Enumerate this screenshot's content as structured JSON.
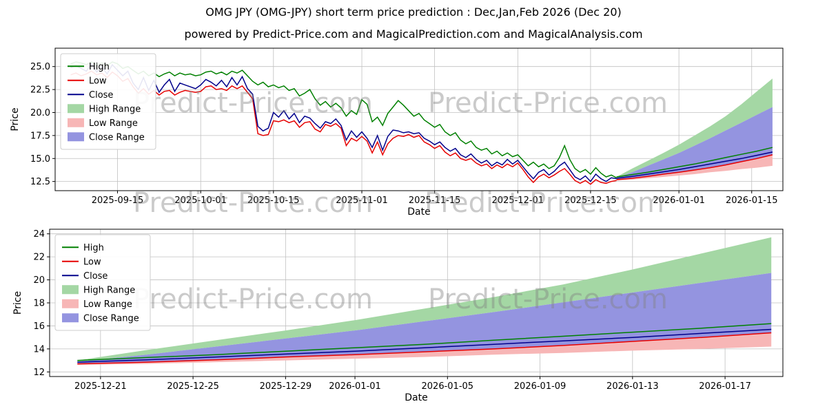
{
  "title": "OMG JPY (OMG-JPY) short term price prediction : Dec,Jan,Feb 2026 (Dec 20)",
  "subtitle": "powered by Predict-Price.com and MagicalPrediction.com and MagicalAnalysis.com",
  "watermark": "Predict-Price.com",
  "legend": [
    "High",
    "Low",
    "Close",
    "High Range",
    "Low Range",
    "Close Range"
  ],
  "colors": {
    "high": "#008000",
    "low": "#e60000",
    "close": "#00008b",
    "high_range": "#a4d7a4",
    "low_range": "#f7b6b6",
    "close_range": "#9494e0",
    "grid": "#c0c0c0",
    "watermark": "#808080"
  },
  "chart_data": {
    "type": "line",
    "history": {
      "start_day": 5,
      "day0_date": "2025-09-01",
      "high": [
        25.3,
        25.5,
        25.4,
        25.2,
        25.5,
        25.2,
        25.4,
        25.1,
        25.5,
        25.3,
        24.8,
        25.0,
        24.6,
        24.2,
        24.5,
        24.0,
        24.3,
        23.9,
        24.2,
        24.4,
        24.0,
        24.3,
        24.1,
        24.2,
        24.0,
        24.1,
        24.4,
        24.5,
        24.2,
        24.4,
        24.1,
        24.5,
        24.3,
        24.6,
        24.0,
        23.4,
        23.0,
        23.3,
        22.8,
        23.0,
        22.7,
        22.9,
        22.4,
        22.6,
        21.8,
        22.1,
        22.5,
        21.5,
        20.8,
        21.2,
        20.6,
        21.0,
        20.5,
        19.6,
        20.2,
        19.8,
        21.4,
        20.9,
        19.0,
        19.5,
        18.6,
        19.9,
        20.6,
        21.3,
        20.8,
        20.2,
        19.6,
        19.9,
        19.2,
        18.8,
        18.4,
        18.7,
        17.9,
        17.5,
        17.8,
        17.0,
        16.6,
        16.9,
        16.2,
        15.9,
        16.1,
        15.5,
        15.8,
        15.3,
        15.6,
        15.2,
        15.4,
        14.8,
        14.2,
        14.6,
        14.1,
        14.4,
        13.9,
        14.2,
        15.1,
        16.4,
        14.9,
        13.9,
        13.5,
        13.8,
        13.3,
        14.0,
        13.4,
        13.0,
        13.2,
        12.9
      ],
      "low": [
        24.1,
        24.3,
        24.0,
        24.2,
        24.5,
        24.1,
        24.3,
        23.8,
        24.4,
        24.0,
        23.4,
        23.7,
        22.8,
        22.1,
        22.6,
        22.0,
        22.4,
        21.9,
        22.3,
        22.4,
        21.9,
        22.2,
        22.4,
        22.3,
        22.2,
        22.3,
        22.8,
        22.9,
        22.5,
        22.6,
        22.4,
        22.9,
        22.6,
        22.9,
        22.2,
        21.5,
        17.7,
        17.5,
        17.6,
        19.1,
        19.0,
        19.2,
        18.9,
        19.1,
        18.4,
        18.9,
        19.0,
        18.2,
        17.9,
        18.7,
        18.5,
        18.8,
        18.3,
        16.4,
        17.2,
        16.9,
        17.4,
        16.9,
        15.6,
        16.8,
        15.4,
        16.6,
        17.2,
        17.5,
        17.4,
        17.6,
        17.3,
        17.5,
        16.8,
        16.5,
        16.1,
        16.4,
        15.7,
        15.3,
        15.6,
        15.0,
        14.8,
        15.0,
        14.5,
        14.2,
        14.4,
        13.9,
        14.3,
        14.0,
        14.4,
        14.1,
        14.5,
        13.8,
        13.0,
        12.4,
        13.0,
        13.3,
        12.9,
        13.2,
        13.6,
        13.9,
        13.3,
        12.6,
        12.3,
        12.6,
        12.2,
        12.7,
        12.4,
        12.3,
        12.5,
        12.6
      ],
      "close": [
        24.9,
        25.1,
        24.8,
        24.5,
        25.3,
        24.4,
        25.0,
        24.2,
        25.2,
        24.6,
        24.0,
        24.5,
        23.2,
        22.5,
        23.8,
        22.4,
        23.5,
        22.2,
        23.0,
        23.6,
        22.3,
        23.2,
        23.0,
        22.8,
        22.6,
        23.0,
        23.6,
        23.3,
        22.9,
        23.5,
        22.8,
        23.8,
        23.0,
        23.9,
        22.6,
        22.0,
        18.5,
        18.0,
        18.3,
        20.0,
        19.5,
        20.2,
        19.3,
        19.9,
        18.9,
        19.6,
        19.4,
        18.8,
        18.3,
        19.0,
        18.8,
        19.3,
        18.6,
        17.0,
        18.0,
        17.3,
        17.9,
        17.2,
        16.2,
        17.5,
        15.9,
        17.4,
        18.1,
        18.0,
        17.8,
        17.9,
        17.7,
        17.8,
        17.2,
        16.9,
        16.5,
        16.8,
        16.2,
        15.8,
        16.1,
        15.4,
        15.1,
        15.5,
        14.9,
        14.5,
        14.8,
        14.2,
        14.6,
        14.3,
        14.9,
        14.4,
        14.8,
        14.1,
        13.4,
        12.8,
        13.5,
        13.8,
        13.2,
        13.6,
        14.2,
        14.6,
        13.8,
        13.0,
        12.7,
        13.1,
        12.5,
        13.3,
        12.8,
        12.5,
        12.9,
        12.8
      ]
    },
    "prediction": {
      "days": [
        110,
        113,
        116,
        119,
        122,
        125,
        128,
        131,
        134,
        137,
        140
      ],
      "high_upper": [
        13.0,
        13.9,
        14.75,
        15.6,
        16.5,
        17.5,
        18.5,
        19.6,
        20.9,
        22.3,
        23.7
      ],
      "close_upper": [
        12.9,
        13.5,
        14.2,
        14.9,
        15.6,
        16.4,
        17.2,
        18.05,
        18.9,
        19.75,
        20.6
      ],
      "high": [
        13.0,
        13.25,
        13.5,
        13.8,
        14.1,
        14.4,
        14.75,
        15.1,
        15.45,
        15.8,
        16.2
      ],
      "close": [
        12.85,
        13.05,
        13.3,
        13.55,
        13.8,
        14.1,
        14.4,
        14.7,
        15.0,
        15.35,
        15.7
      ],
      "low": [
        12.7,
        12.85,
        13.05,
        13.3,
        13.5,
        13.75,
        14.0,
        14.3,
        14.65,
        15.0,
        15.4
      ],
      "low_lower": [
        12.6,
        12.7,
        12.85,
        13.0,
        13.15,
        13.3,
        13.5,
        13.65,
        13.85,
        14.0,
        14.2
      ]
    },
    "charts": [
      {
        "ylabel": "Price",
        "xlabel": "Date",
        "show_history": true,
        "xlim": [
          2,
          142
        ],
        "ylim": [
          11.5,
          27.0
        ],
        "yticks": {
          "values": [
            12.5,
            15.0,
            17.5,
            20.0,
            22.5,
            25.0
          ],
          "labels": [
            "12.5",
            "15.0",
            "17.5",
            "20.0",
            "22.5",
            "25.0"
          ]
        },
        "xticks": [
          {
            "day": 14,
            "label": "2025-09-15"
          },
          {
            "day": 30,
            "label": "2025-10-01"
          },
          {
            "day": 44,
            "label": "2025-10-15"
          },
          {
            "day": 61,
            "label": "2025-11-01"
          },
          {
            "day": 75,
            "label": "2025-11-15"
          },
          {
            "day": 91,
            "label": "2025-12-01"
          },
          {
            "day": 105,
            "label": "2025-12-15"
          },
          {
            "day": 122,
            "label": "2026-01-01"
          },
          {
            "day": 136,
            "label": "2026-01-15"
          }
        ]
      },
      {
        "ylabel": "Price",
        "xlabel": "Date",
        "show_history": false,
        "xlim": [
          108.8,
          140.5
        ],
        "ylim": [
          11.6,
          24.4
        ],
        "yticks": {
          "values": [
            12,
            14,
            16,
            18,
            20,
            22,
            24
          ],
          "labels": [
            "12",
            "14",
            "16",
            "18",
            "20",
            "22",
            "24"
          ]
        },
        "xticks": [
          {
            "day": 111,
            "label": "2025-12-21"
          },
          {
            "day": 115,
            "label": "2025-12-25"
          },
          {
            "day": 119,
            "label": "2025-12-29"
          },
          {
            "day": 122,
            "label": "2026-01-01"
          },
          {
            "day": 126,
            "label": "2026-01-05"
          },
          {
            "day": 130,
            "label": "2026-01-09"
          },
          {
            "day": 134,
            "label": "2026-01-13"
          },
          {
            "day": 138,
            "label": "2026-01-17"
          }
        ]
      }
    ]
  }
}
